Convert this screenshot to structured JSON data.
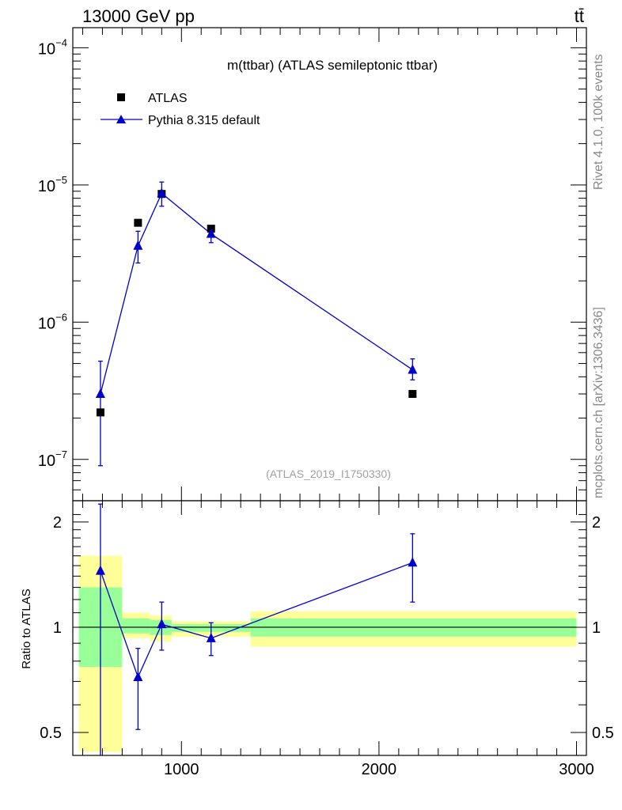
{
  "header": {
    "left": "13000 GeV pp",
    "right": "tt̄"
  },
  "side": {
    "rivet": "Rivet 4.1.0,  100k events",
    "mcplots": "mcplots.cern.ch [arXiv:1306.3436]"
  },
  "chart_data": {
    "type": "scatter",
    "title": "m(ttbar) (ATLAS semileptonic ttbar)",
    "analysis_tag": "(ATLAS_2019_I1750330)",
    "x_ticks": [
      "1000",
      "2000",
      "3000"
    ],
    "xlim": [
      450,
      3050
    ],
    "main": {
      "yscale": "log",
      "ylim": [
        5e-08,
        0.00014
      ],
      "y_ticks": [
        {
          "value": 1e-07,
          "base": "10",
          "exp": "−7"
        },
        {
          "value": 1e-06,
          "base": "10",
          "exp": "−6"
        },
        {
          "value": 1e-05,
          "base": "10",
          "exp": "−5"
        },
        {
          "value": 0.0001,
          "base": "10",
          "exp": "−4"
        }
      ],
      "series": [
        {
          "name": "ATLAS",
          "marker": "square",
          "color": "#000000",
          "x": [
            590,
            780,
            900,
            1150,
            2170
          ],
          "y": [
            2.2e-07,
            5.3e-06,
            8.6e-06,
            4.8e-06,
            3e-07
          ]
        },
        {
          "name": "Pythia 8.315 default",
          "marker": "triangle",
          "color": "#0000cc",
          "x": [
            590,
            780,
            900,
            1150,
            2170
          ],
          "y": [
            3e-07,
            3.6e-06,
            8.7e-06,
            4.4e-06,
            4.5e-07
          ],
          "yerr_low": [
            9e-08,
            2.7e-06,
            7e-06,
            3.8e-06,
            3.8e-07
          ],
          "yerr_high": [
            5.2e-07,
            4.6e-06,
            1.05e-05,
            5e-06,
            5.4e-07
          ]
        }
      ]
    },
    "ratio": {
      "ylabel": "Ratio to ATLAS",
      "yscale": "log",
      "ylim": [
        0.43,
        2.3
      ],
      "y_ticks": [
        {
          "value": 0.5,
          "label": "0.5"
        },
        {
          "value": 1,
          "label": "1"
        },
        {
          "value": 2,
          "label": "2"
        }
      ],
      "bands": [
        {
          "x0": 480,
          "x1": 700,
          "yellow": [
            0.44,
            1.6
          ],
          "green": [
            0.77,
            1.3
          ]
        },
        {
          "x0": 700,
          "x1": 840,
          "yellow": [
            0.93,
            1.1
          ],
          "green": [
            0.96,
            1.06
          ]
        },
        {
          "x0": 840,
          "x1": 950,
          "yellow": [
            0.91,
            1.08
          ],
          "green": [
            0.95,
            1.05
          ]
        },
        {
          "x0": 950,
          "x1": 1350,
          "yellow": [
            0.94,
            1.04
          ],
          "green": [
            0.97,
            1.02
          ]
        },
        {
          "x0": 1350,
          "x1": 3000,
          "yellow": [
            0.88,
            1.11
          ],
          "green": [
            0.94,
            1.06
          ]
        }
      ],
      "series": [
        {
          "name": "Pythia 8.315 default",
          "x": [
            590,
            780,
            900,
            1150,
            2170
          ],
          "y": [
            1.45,
            0.72,
            1.02,
            0.93,
            1.53
          ],
          "yerr_low": [
            0.42,
            0.51,
            0.86,
            0.83,
            1.18
          ],
          "yerr_high": [
            2.25,
            0.87,
            1.18,
            1.03,
            1.85
          ]
        }
      ]
    }
  }
}
